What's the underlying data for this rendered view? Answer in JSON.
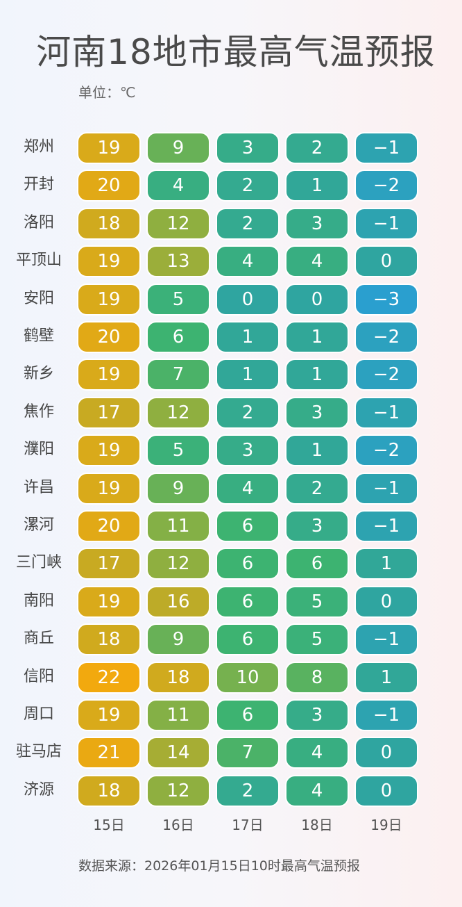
{
  "title": "河南18地市最高气温预报",
  "unit_label": "单位：℃",
  "source_label": "数据来源：2026年01月15日10时最高气温预报",
  "colors": {
    "hot": "#f2a90e",
    "warm": "#c8aa22",
    "mild": "#84b046",
    "green": "#3db371",
    "teal": "#2fa5a0",
    "cold": "#2a9fcf"
  },
  "chart_data": {
    "type": "heatmap",
    "title": "河南18地市最高气温预报",
    "unit": "℃",
    "x_categories": [
      "15日",
      "16日",
      "17日",
      "18日",
      "19日"
    ],
    "y_categories": [
      "郑州",
      "开封",
      "洛阳",
      "平顶山",
      "安阳",
      "鹤壁",
      "新乡",
      "焦作",
      "濮阳",
      "许昌",
      "漯河",
      "三门峡",
      "南阳",
      "商丘",
      "信阳",
      "周口",
      "驻马店",
      "济源"
    ],
    "values": [
      [
        19,
        9,
        3,
        2,
        -1
      ],
      [
        20,
        4,
        2,
        1,
        -2
      ],
      [
        18,
        12,
        2,
        3,
        -1
      ],
      [
        19,
        13,
        4,
        4,
        0
      ],
      [
        19,
        5,
        0,
        0,
        -3
      ],
      [
        20,
        6,
        1,
        1,
        -2
      ],
      [
        19,
        7,
        1,
        1,
        -2
      ],
      [
        17,
        12,
        2,
        3,
        -1
      ],
      [
        19,
        5,
        3,
        1,
        -2
      ],
      [
        19,
        9,
        4,
        2,
        -1
      ],
      [
        20,
        11,
        6,
        3,
        -1
      ],
      [
        17,
        12,
        6,
        6,
        1
      ],
      [
        19,
        16,
        6,
        5,
        0
      ],
      [
        18,
        9,
        6,
        5,
        -1
      ],
      [
        22,
        18,
        10,
        8,
        1
      ],
      [
        19,
        11,
        6,
        3,
        -1
      ],
      [
        21,
        14,
        7,
        4,
        0
      ],
      [
        18,
        12,
        2,
        4,
        0
      ]
    ],
    "display_labels": [
      [
        "19",
        "9",
        "3",
        "2",
        "−1"
      ],
      [
        "20",
        "4",
        "2",
        "1",
        "−2"
      ],
      [
        "18",
        "12",
        "2",
        "3",
        "−1"
      ],
      [
        "19",
        "13",
        "4",
        "4",
        "0"
      ],
      [
        "19",
        "5",
        "0",
        "0",
        "−3"
      ],
      [
        "20",
        "6",
        "1",
        "1",
        "−2"
      ],
      [
        "19",
        "7",
        "1",
        "1",
        "−2"
      ],
      [
        "17",
        "12",
        "2",
        "3",
        "−1"
      ],
      [
        "19",
        "5",
        "3",
        "1",
        "−2"
      ],
      [
        "19",
        "9",
        "4",
        "2",
        "−1"
      ],
      [
        "20",
        "11",
        "6",
        "3",
        "−1"
      ],
      [
        "17",
        "12",
        "6",
        "6",
        "1"
      ],
      [
        "19",
        "16",
        "6",
        "5",
        "0"
      ],
      [
        "18",
        "9",
        "6",
        "5",
        "−1"
      ],
      [
        "22",
        "18",
        "10",
        "8",
        "1"
      ],
      [
        "19",
        "11",
        "6",
        "3",
        "−1"
      ],
      [
        "21",
        "14",
        "7",
        "4",
        "0"
      ],
      [
        "18",
        "12",
        "2",
        "4",
        "0"
      ]
    ],
    "color_scale": {
      "min": -3,
      "max": 22
    }
  }
}
